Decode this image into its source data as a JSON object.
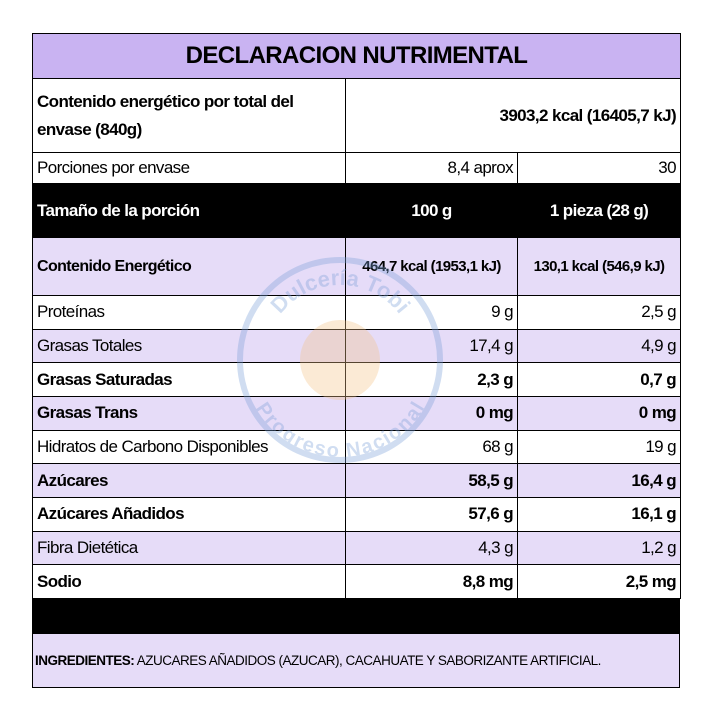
{
  "title": "DECLARACION NUTRIMENTAL",
  "energy_total": {
    "label": "Contenido energético por total del envase (840g)",
    "value": "3903,2 kcal (16405,7 kJ)"
  },
  "portions": {
    "label": "Porciones por envase",
    "values": [
      "8,4 aprox",
      "30"
    ]
  },
  "serving": {
    "label": "Tamaño de la porción",
    "values": [
      "100 g",
      "1 pieza (28 g)"
    ]
  },
  "energy": {
    "label": "Contenido Energético",
    "values": [
      "464,7 kcal (1953,1 kJ)",
      "130,1 kcal (546,9 kJ)"
    ]
  },
  "rows": [
    {
      "label": "Proteínas",
      "values": [
        "9 g",
        "2,5 g"
      ],
      "bold": false
    },
    {
      "label": "Grasas Totales",
      "values": [
        "17,4 g",
        "4,9 g"
      ],
      "bold": false
    },
    {
      "label": "Grasas Saturadas",
      "values": [
        "2,3 g",
        "0,7 g"
      ],
      "bold": true
    },
    {
      "label": "Grasas Trans",
      "values": [
        "0 mg",
        "0 mg"
      ],
      "bold": true
    },
    {
      "label": "Hidratos de Carbono Disponibles",
      "values": [
        "68 g",
        "19 g"
      ],
      "bold": false
    },
    {
      "label": "Azúcares",
      "values": [
        "58,5 g",
        "16,4 g"
      ],
      "bold": true
    },
    {
      "label": "Azúcares Añadidos",
      "values": [
        "57,6 g",
        "16,1 g"
      ],
      "bold": true
    },
    {
      "label": "Fibra Dietética",
      "values": [
        "4,3 g",
        "1,2 g"
      ],
      "bold": false
    },
    {
      "label": "Sodio",
      "values": [
        "8,8 mg",
        "2,5 mg"
      ],
      "bold": true
    }
  ],
  "ingredients": {
    "label": "INGREDIENTES:",
    "text": "AZUCARES AÑADIDOS (AZUCAR), CACAHUATE Y SABORIZANTE ARTIFICIAL."
  },
  "watermark": {
    "top": "Dulcería Tobi",
    "bottom": "Progreso Nacional"
  }
}
